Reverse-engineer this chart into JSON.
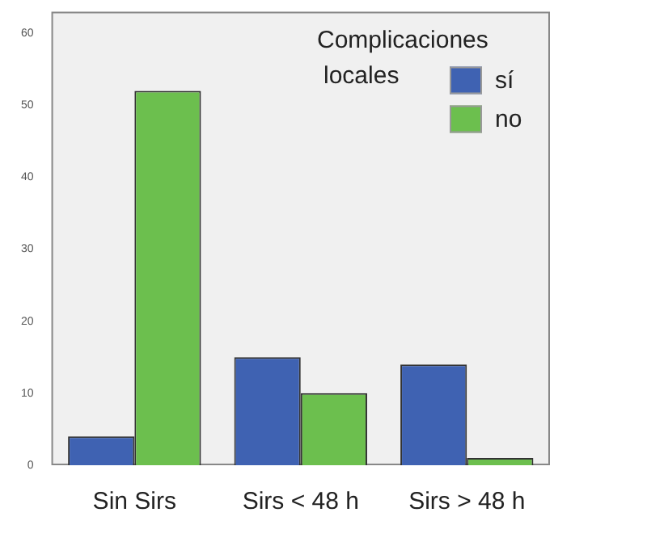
{
  "chart_data": {
    "type": "bar",
    "categories": [
      "Sin Sirs",
      "Sirs < 48 h",
      "Sirs > 48 h"
    ],
    "series": [
      {
        "name": "sí",
        "color": "#3f62b2",
        "values": [
          4,
          15,
          14
        ]
      },
      {
        "name": "no",
        "color": "#6cbf4e",
        "values": [
          52,
          10,
          1
        ]
      }
    ],
    "legend_title": "Complicaciones locales",
    "legend": "top right",
    "ylim": [
      0,
      63
    ],
    "yticks": [
      0,
      10,
      20,
      30,
      40,
      50,
      60
    ],
    "grid": false
  }
}
